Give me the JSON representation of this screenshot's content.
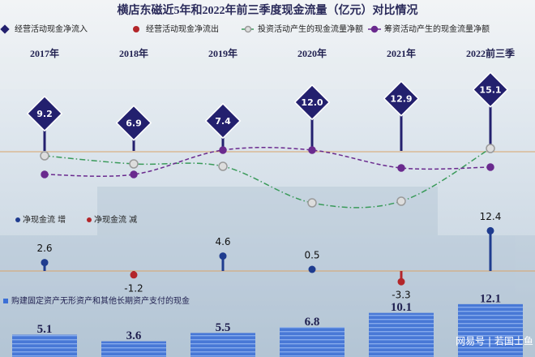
{
  "chart_data": [
    {
      "type": "line",
      "title": "横店东磁近5年和2022年前三季度现金流量（亿元）对比情况",
      "categories": [
        "2017年",
        "2018年",
        "2019年",
        "2020年",
        "2021年",
        "2022前三季"
      ],
      "ylim": [
        -14,
        17
      ],
      "series": [
        {
          "name": "经营活动现金净流入",
          "color": "#23206e",
          "style": "lollipop",
          "values": [
            9.2,
            6.9,
            7.4,
            12,
            12.9,
            15.1
          ],
          "value_labels": [
            "9.2",
            "6.9",
            "7.4",
            "12.0",
            "12.9",
            "15.1"
          ]
        },
        {
          "name": "经营活动现金净流出",
          "color": "#b3262a",
          "style": "lollipop",
          "values": [
            null,
            null,
            null,
            null,
            null,
            null
          ]
        },
        {
          "name": "投资活动产生的现金流量净额",
          "color": "#3a9a5a",
          "marker_color": "#9a9a9a",
          "style": "dashdot",
          "values": [
            -1.2,
            -3.2,
            -3.8,
            -12.8,
            -12.4,
            0.6
          ]
        },
        {
          "name": "筹资活动产生的现金流量净额",
          "color": "#6a2a8e",
          "marker_color": "#6a2a8e",
          "style": "dashed",
          "values": [
            -5.8,
            -5.8,
            0.2,
            0.2,
            -4.2,
            -4
          ]
        }
      ]
    },
    {
      "type": "stem",
      "ylim": [
        -5,
        14
      ],
      "legend": [
        {
          "name": "净现金流 增",
          "color": "#1f3c8f"
        },
        {
          "name": "净现金流 减",
          "color": "#b3262a"
        }
      ],
      "values": [
        2.6,
        -1.2,
        4.6,
        0.5,
        -3.3,
        12.4
      ]
    },
    {
      "type": "bar",
      "ylim": [
        0,
        13
      ],
      "series": [
        {
          "name": "购建固定资产无形资产和其他长期资产支付的现金",
          "color": "#3c6fd6",
          "values": [
            5.1,
            3.6,
            5.5,
            6.8,
            10.1,
            12.1
          ]
        }
      ]
    }
  ],
  "footer": {
    "watermark": "网易号 | 若国士鱼"
  }
}
